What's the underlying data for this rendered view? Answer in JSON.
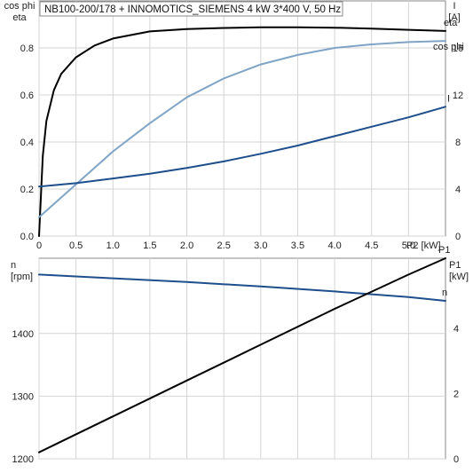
{
  "chart_data": [
    {
      "type": "line",
      "title": "NB100-200/178 + INNOMOTICS_SIEMENS   4 kW   3*400 V, 50 Hz",
      "xlabel": "P2 [kW]",
      "x_ticks": [
        "0",
        "0.5",
        "1.0",
        "1.5",
        "2.0",
        "2.5",
        "3.0",
        "3.5",
        "4.0",
        "4.5",
        "5.0"
      ],
      "xlim": [
        0,
        5.5
      ],
      "y_left_label": [
        "cos phi",
        "eta"
      ],
      "y_left_ticks": [
        "0.0",
        "0.2",
        "0.4",
        "0.6",
        "0.8"
      ],
      "y_left_lim": [
        0,
        1.0
      ],
      "y_right_label": [
        "I",
        "[A]"
      ],
      "y_right_ticks": [
        "0",
        "4",
        "8",
        "12",
        "16"
      ],
      "y_right_lim": [
        0,
        20
      ],
      "grid": true,
      "series": [
        {
          "name": "eta",
          "axis": "left",
          "color": "#000000",
          "x": [
            0.0,
            0.05,
            0.1,
            0.2,
            0.3,
            0.5,
            0.75,
            1.0,
            1.5,
            2.0,
            2.5,
            3.0,
            3.5,
            4.0,
            4.5,
            5.0,
            5.5
          ],
          "y": [
            0.0,
            0.34,
            0.49,
            0.62,
            0.69,
            0.76,
            0.81,
            0.84,
            0.87,
            0.88,
            0.885,
            0.888,
            0.888,
            0.886,
            0.882,
            0.877,
            0.872
          ]
        },
        {
          "name": "cos phi",
          "axis": "left",
          "color": "#7fa4c6",
          "x": [
            0.0,
            0.25,
            0.5,
            1.0,
            1.5,
            2.0,
            2.5,
            3.0,
            3.5,
            4.0,
            4.5,
            5.0,
            5.5
          ],
          "y": [
            0.08,
            0.15,
            0.22,
            0.36,
            0.48,
            0.59,
            0.67,
            0.73,
            0.77,
            0.8,
            0.815,
            0.825,
            0.83
          ]
        },
        {
          "name": "I",
          "axis": "right",
          "color": "#1f4e8c",
          "x": [
            0.0,
            0.5,
            1.0,
            1.5,
            2.0,
            2.5,
            3.0,
            3.5,
            4.0,
            4.5,
            5.0,
            5.5
          ],
          "y": [
            4.2,
            4.5,
            4.9,
            5.3,
            5.8,
            6.35,
            7.0,
            7.7,
            8.5,
            9.3,
            10.1,
            11.0
          ]
        }
      ]
    },
    {
      "type": "line",
      "y_left_label": [
        "n",
        "[rpm]"
      ],
      "y_left_ticks": [
        "1200",
        "1300",
        "1400"
      ],
      "y_left_lim": [
        1200,
        1520
      ],
      "y_right_label": [
        "P1",
        "[kW]"
      ],
      "y_right_ticks": [
        "0",
        "2",
        "4"
      ],
      "y_right_lim": [
        0,
        6.15
      ],
      "xlim": [
        0,
        5.5
      ],
      "grid": true,
      "series": [
        {
          "name": "n",
          "axis": "left",
          "color": "#1f4e8c",
          "x": [
            0.0,
            1.0,
            2.0,
            3.0,
            4.0,
            5.0,
            5.5
          ],
          "y": [
            1494,
            1488,
            1482,
            1475,
            1467,
            1458,
            1452
          ]
        },
        {
          "name": "P1",
          "axis": "right",
          "color": "#000000",
          "x": [
            0.0,
            1.0,
            2.0,
            3.0,
            4.0,
            5.0,
            5.5
          ],
          "y": [
            0.2,
            1.3,
            2.4,
            3.5,
            4.6,
            5.65,
            6.15
          ]
        }
      ]
    }
  ]
}
